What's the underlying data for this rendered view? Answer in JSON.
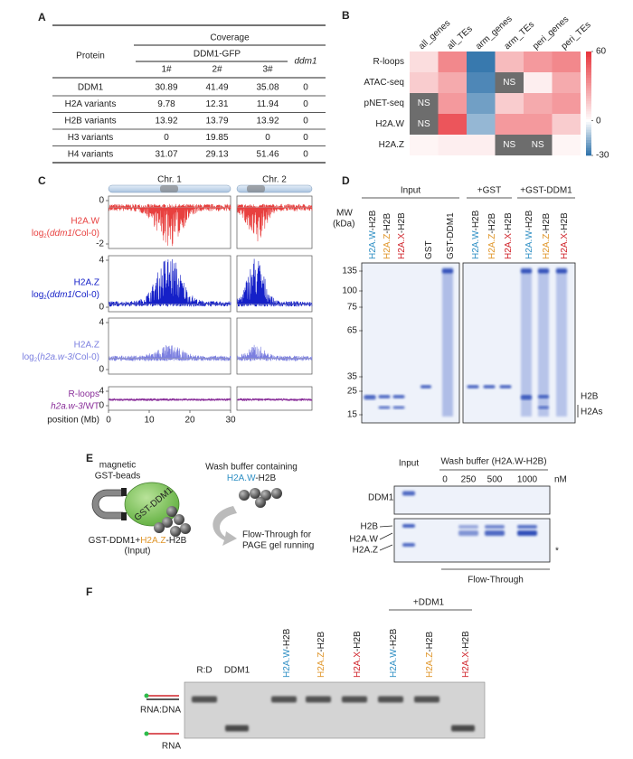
{
  "panel_a": {
    "letter": "A",
    "header": {
      "protein": "Protein",
      "coverage": "Coverage",
      "ddm1_gfp": "DDM1-GFP",
      "ddm1": "ddm1",
      "replicates": [
        "1#",
        "2#",
        "3#"
      ]
    },
    "rows": [
      [
        "DDM1",
        "30.89",
        "41.49",
        "35.08",
        "0"
      ],
      [
        "H2A variants",
        "9.78",
        "12.31",
        "11.94",
        "0"
      ],
      [
        "H2B variants",
        "13.92",
        "13.79",
        "13.92",
        "0"
      ],
      [
        "H3 variants",
        "0",
        "19.85",
        "0",
        "0"
      ],
      [
        "H4 variants",
        "31.07",
        "29.13",
        "51.46",
        "0"
      ]
    ]
  },
  "panel_b": {
    "letter": "B",
    "columns": [
      "all_genes",
      "all_TEs",
      "arm_genes",
      "arm_TEs",
      "peri_genes",
      "peri_TEs"
    ],
    "rows": [
      "R-loops",
      "ATAC-seq",
      "pNET-seq",
      "H2A.W",
      "H2A.Z"
    ],
    "values": [
      [
        10,
        35,
        -28,
        20,
        30,
        35
      ],
      [
        15,
        25,
        -25,
        "NS",
        5,
        25
      ],
      [
        "NS",
        30,
        -20,
        15,
        25,
        30
      ],
      [
        "NS",
        50,
        -15,
        30,
        30,
        15
      ],
      [
        3,
        5,
        5,
        "NS",
        "NS",
        3
      ]
    ],
    "colorbar": {
      "lim": [
        -30,
        60
      ],
      "ticks": [
        60,
        0,
        -30
      ],
      "low_color": "#2a6fa8",
      "high_color": "#e8333a"
    }
  },
  "panel_c": {
    "letter": "C",
    "chromosomes": [
      "Chr. 1",
      "Chr. 2"
    ],
    "tracks": [
      {
        "name": "H2A.W",
        "color": "#e8403f",
        "label": [
          "log",
          "2",
          "(",
          "ddm1",
          "/Col-0)"
        ],
        "yticks": [
          0,
          -2
        ]
      },
      {
        "name": "H2A.Z",
        "color": "#1520c8",
        "label": [
          "log",
          "2",
          "(",
          "ddm1",
          "/Col-0)"
        ],
        "yticks": [
          4,
          0
        ]
      },
      {
        "name": "H2A.Z",
        "color": "#7b7fe0",
        "label": [
          "log",
          "2",
          "(",
          "h2a.w-3",
          "/Col-0)"
        ],
        "yticks": [
          4,
          0
        ]
      },
      {
        "name": "R-loops",
        "color": "#8a2f9a",
        "label": [
          "h2a.w-3",
          "/WT"
        ],
        "yticks": [
          4,
          0
        ]
      }
    ],
    "xlabel": "position (Mb)",
    "xticks": [
      0,
      10,
      20,
      30
    ]
  },
  "panel_d": {
    "letter": "D",
    "groups": [
      "Input",
      "+GST",
      "+GST-DDM1"
    ],
    "lanes": [
      {
        "parts": [
          "H2A.W",
          "-H2B"
        ],
        "color": "#2f8fc4"
      },
      {
        "parts": [
          "H2A.Z",
          "-H2B"
        ],
        "color": "#e0962a"
      },
      {
        "parts": [
          "H2A.X",
          "-H2B"
        ],
        "color": "#d0232a"
      },
      {
        "parts": [
          "GST"
        ],
        "color": "#222"
      },
      {
        "parts": [
          "GST-DDM1"
        ],
        "color": "#222"
      },
      {
        "parts": [
          "H2A.W",
          "-H2B"
        ],
        "color": "#2f8fc4"
      },
      {
        "parts": [
          "H2A.Z",
          "-H2B"
        ],
        "color": "#e0962a"
      },
      {
        "parts": [
          "H2A.X",
          "-H2B"
        ],
        "color": "#d0232a"
      },
      {
        "parts": [
          "H2A.W",
          "-H2B"
        ],
        "color": "#2f8fc4"
      },
      {
        "parts": [
          "H2A.Z",
          "-H2B"
        ],
        "color": "#e0962a"
      },
      {
        "parts": [
          "H2A.X",
          "-H2B"
        ],
        "color": "#d0232a"
      }
    ],
    "mw_label": "MW",
    "mw_unit": "(kDa)",
    "mw_ticks": [
      135,
      100,
      75,
      65,
      35,
      25,
      15
    ],
    "band_labels": [
      "H2B",
      "H2As"
    ]
  },
  "panel_e": {
    "letter": "E",
    "diagram": {
      "beads": [
        "magnetic",
        "GST-beads"
      ],
      "ddm1": "GST-DDM1",
      "wash": "Wash buffer containing",
      "wash_histone": {
        "parts": [
          "H2A.W",
          "-H2B"
        ],
        "colors": [
          "#2f8fc4",
          "#222"
        ]
      },
      "input": {
        "parts": [
          "GST-DDM1+",
          "H2A.Z",
          "-H2B"
        ],
        "colors": [
          "#222",
          "#e0962a",
          "#222"
        ]
      },
      "input_note": "(Input)",
      "flow": [
        "Flow-Through for",
        "PAGE gel running"
      ]
    },
    "gel": {
      "input": "Input",
      "wash": "Wash buffer (H2A.W-H2B)",
      "concentrations": [
        "0",
        "250",
        "500",
        "1000"
      ],
      "unit": "nM",
      "row": "DDM1",
      "bands": [
        "H2B",
        "H2A.W",
        "H2A.Z"
      ],
      "asterisk": "*",
      "flow_through": "Flow-Through"
    }
  },
  "panel_f": {
    "letter": "F",
    "group": "+DDM1",
    "lanes": [
      {
        "parts": [
          "R:D"
        ],
        "color": "#222"
      },
      {
        "parts": [
          "DDM1"
        ],
        "color": "#222"
      },
      {
        "parts": [
          "H2A.W",
          "-H2B"
        ],
        "color": "#2f8fc4"
      },
      {
        "parts": [
          "H2A.Z",
          "-H2B"
        ],
        "color": "#e0962a"
      },
      {
        "parts": [
          "H2A.X",
          "-H2B"
        ],
        "color": "#d0232a"
      },
      {
        "parts": [
          "H2A.W",
          "-H2B"
        ],
        "color": "#2f8fc4"
      },
      {
        "parts": [
          "H2A.Z",
          "-H2B"
        ],
        "color": "#e0962a"
      },
      {
        "parts": [
          "H2A.X",
          "-H2B"
        ],
        "color": "#d0232a"
      }
    ],
    "labels": [
      "RNA:DNA",
      "RNA"
    ]
  }
}
